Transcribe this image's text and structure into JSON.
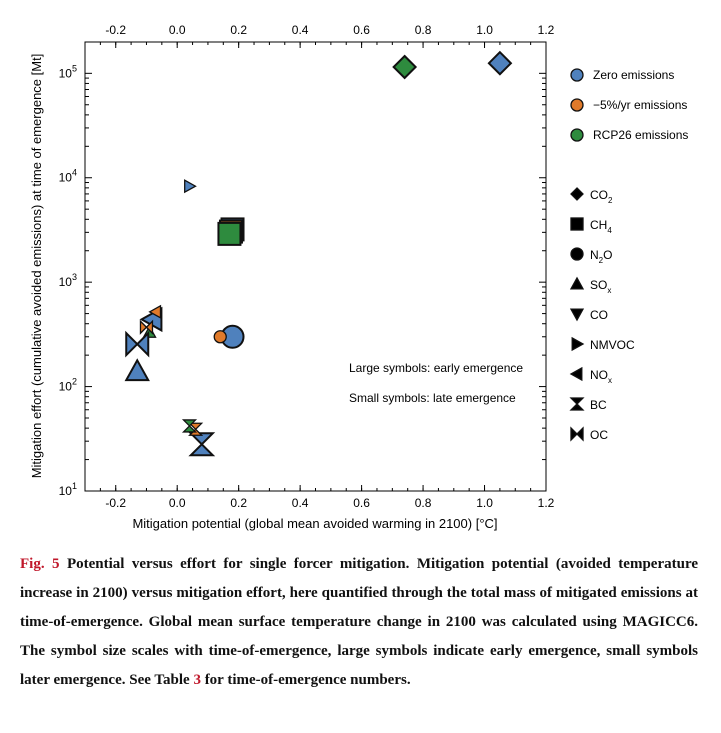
{
  "chart_data": {
    "type": "scatter",
    "xlabel": "Mitigation potential (global mean avoided warming in 2100) [°C]",
    "ylabel": "Mitigation effort (cumulative avoided emissions) at time of emergence [Mt]",
    "xlim": [
      -0.3,
      1.2
    ],
    "ylim_log10": [
      1,
      5.3
    ],
    "yscale": "log",
    "x_ticks": [
      "-0.2",
      "0.0",
      "0.2",
      "0.4",
      "0.6",
      "0.8",
      "1.0",
      "1.2"
    ],
    "x_tick_values": [
      -0.2,
      0.0,
      0.2,
      0.4,
      0.6,
      0.8,
      1.0,
      1.2
    ],
    "x_top_ticks": [
      "-0.2",
      "0.0",
      "0.2",
      "0.4",
      "0.6",
      "0.8",
      "1.0",
      "1.2"
    ],
    "y_ticks": [
      {
        "base": "10",
        "exp": "1",
        "value": 10
      },
      {
        "base": "10",
        "exp": "2",
        "value": 100
      },
      {
        "base": "10",
        "exp": "3",
        "value": 1000
      },
      {
        "base": "10",
        "exp": "4",
        "value": 10000
      },
      {
        "base": "10",
        "exp": "5",
        "value": 100000
      }
    ],
    "colors": {
      "Zero emissions": "#4f81bd",
      "-5%/yr emissions": "#e07a2a",
      "RCP26 emissions": "#2e8b3e"
    },
    "legend_scenarios": [
      {
        "label": "Zero emissions",
        "color": "#4f81bd"
      },
      {
        "label": "−5%/yr emissions",
        "color": "#e07a2a"
      },
      {
        "label": "RCP26 emissions",
        "color": "#2e8b3e"
      }
    ],
    "legend_species": [
      {
        "label": "CO",
        "sub": "2",
        "shape": "diamond"
      },
      {
        "label": "CH",
        "sub": "4",
        "shape": "square"
      },
      {
        "label": "N",
        "sub": "2",
        "tail": "O",
        "shape": "circle"
      },
      {
        "label": "SO",
        "sub": "x",
        "shape": "triangle-up"
      },
      {
        "label": "CO",
        "sub": "",
        "shape": "triangle-down"
      },
      {
        "label": "NMVOC",
        "sub": "",
        "shape": "triangle-right"
      },
      {
        "label": "NO",
        "sub": "x",
        "shape": "triangle-left"
      },
      {
        "label": "BC",
        "sub": "",
        "shape": "hourglass"
      },
      {
        "label": "OC",
        "sub": "",
        "shape": "bowtie"
      }
    ],
    "annotations": [
      "Large symbols: early emergence",
      "Small symbols: late emergence"
    ],
    "points": [
      {
        "scenario": "Zero emissions",
        "species": "CO2",
        "shape": "diamond",
        "x": 1.05,
        "y": 125000,
        "size": "large"
      },
      {
        "scenario": "RCP26 emissions",
        "species": "CO2",
        "shape": "diamond",
        "x": 0.74,
        "y": 115000,
        "size": "large"
      },
      {
        "scenario": "Zero emissions",
        "species": "CH4",
        "shape": "square",
        "x": 0.18,
        "y": 3200,
        "size": "large"
      },
      {
        "scenario": "-5%/yr emissions",
        "species": "CH4",
        "shape": "square",
        "x": 0.175,
        "y": 3050,
        "size": "large"
      },
      {
        "scenario": "RCP26 emissions",
        "species": "CH4",
        "shape": "square",
        "x": 0.17,
        "y": 2900,
        "size": "large"
      },
      {
        "scenario": "Zero emissions",
        "species": "NMVOC",
        "shape": "triangle-right",
        "x": 0.04,
        "y": 8300,
        "size": "small"
      },
      {
        "scenario": "Zero emissions",
        "species": "N2O",
        "shape": "circle",
        "x": 0.18,
        "y": 300,
        "size": "large"
      },
      {
        "scenario": "-5%/yr emissions",
        "species": "N2O",
        "shape": "circle",
        "x": 0.14,
        "y": 300,
        "size": "small"
      },
      {
        "scenario": "Zero emissions",
        "species": "SOx",
        "shape": "triangle-up",
        "x": -0.13,
        "y": 140,
        "size": "large"
      },
      {
        "scenario": "RCP26 emissions",
        "species": "SOx",
        "shape": "triangle-up",
        "x": -0.09,
        "y": 330,
        "size": "small"
      },
      {
        "scenario": "Zero emissions",
        "species": "OC",
        "shape": "bowtie",
        "x": -0.13,
        "y": 255,
        "size": "large"
      },
      {
        "scenario": "Zero emissions",
        "species": "NOx",
        "shape": "triangle-left",
        "x": -0.08,
        "y": 440,
        "size": "large"
      },
      {
        "scenario": "-5%/yr emissions",
        "species": "NOx",
        "shape": "triangle-left",
        "x": -0.07,
        "y": 520,
        "size": "small"
      },
      {
        "scenario": "-5%/yr emissions",
        "species": "OC",
        "shape": "bowtie",
        "x": -0.1,
        "y": 370,
        "size": "small"
      },
      {
        "scenario": "Zero emissions",
        "species": "BC",
        "shape": "hourglass",
        "x": 0.08,
        "y": 28,
        "size": "large"
      },
      {
        "scenario": "-5%/yr emissions",
        "species": "BC",
        "shape": "hourglass",
        "x": 0.06,
        "y": 39,
        "size": "small"
      },
      {
        "scenario": "RCP26 emissions",
        "species": "BC",
        "shape": "hourglass",
        "x": 0.04,
        "y": 42,
        "size": "small"
      }
    ]
  },
  "caption": {
    "fig_label": "Fig. 5",
    "title": "Potential versus effort for single forcer mitigation.",
    "text": "Mitigation potential (avoided temperature increase in 2100) versus mitigation effort, here quantified through the total mass of mitigated emissions at time-of-emergence. Global mean surface temperature change in 2100 was calculated using MAGICC6. The symbol size scales with time-of-emergence, large symbols indicate early emergence, small symbols later emergence. See Table",
    "table_ref": "3",
    "text_end": "for time-of-emergence numbers."
  }
}
